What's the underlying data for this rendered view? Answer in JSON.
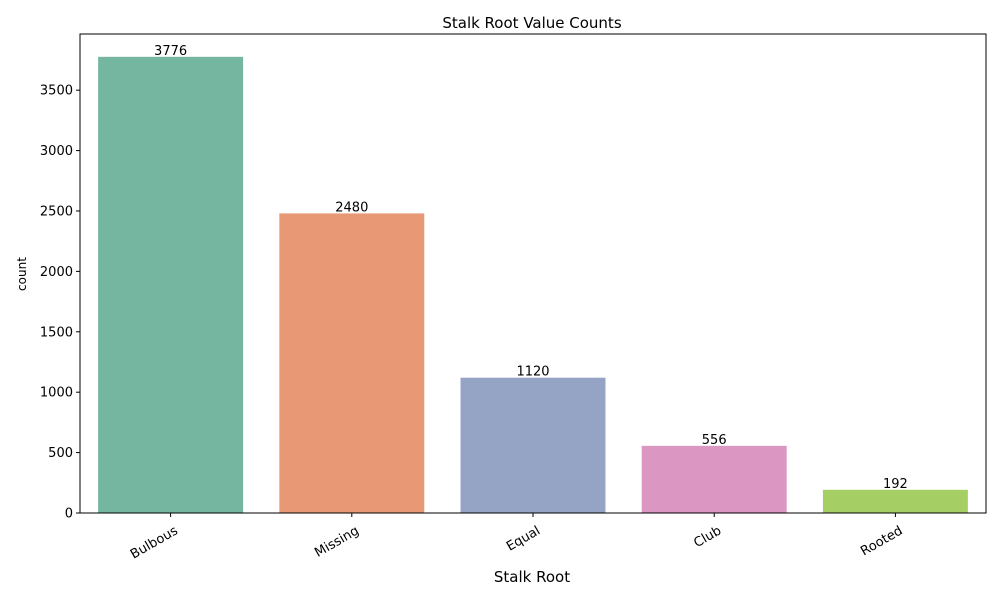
{
  "chart_data": {
    "type": "bar",
    "title": "Stalk Root Value Counts",
    "xlabel": "Stalk Root",
    "ylabel": "count",
    "categories": [
      "Bulbous",
      "Missing",
      "Equal",
      "Club",
      "Rooted"
    ],
    "values": [
      3776,
      2480,
      1120,
      556,
      192
    ],
    "data_labels": [
      "3776",
      "2480",
      "1120",
      "556",
      "192"
    ],
    "colors": [
      "#75b6a0",
      "#e99875",
      "#95a4c4",
      "#dc96c2",
      "#a5ce64"
    ],
    "ylim": [
      0,
      3965
    ],
    "yticks": [
      0,
      500,
      1000,
      1500,
      2000,
      2500,
      3000,
      3500
    ],
    "ytick_labels": [
      "0",
      "500",
      "1000",
      "1500",
      "2000",
      "2500",
      "3000",
      "3500"
    ],
    "xtick_rotation_deg": 30,
    "grid": false,
    "legend": "none"
  }
}
